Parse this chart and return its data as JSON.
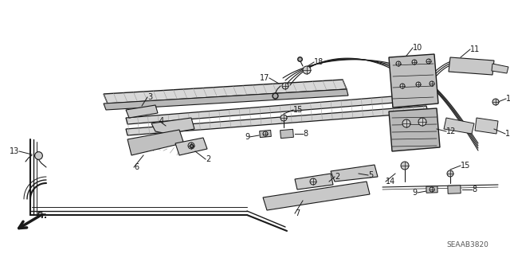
{
  "part_number": "SEAAB3820",
  "background_color": "#ffffff",
  "line_color": "#1a1a1a",
  "fig_width": 6.4,
  "fig_height": 3.19,
  "dpi": 100,
  "label_fontsize": 7.0,
  "label_color": "#1a1a1a"
}
